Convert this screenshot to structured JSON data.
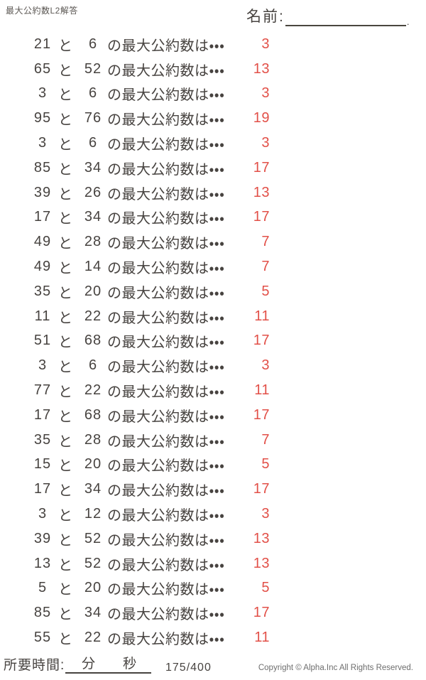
{
  "page": {
    "title_small": "最大公約数L2解答"
  },
  "name_field": {
    "label": "名前:",
    "end_mark": "."
  },
  "problem_format": {
    "connector": "と",
    "suffix": "の最大公約数は・・・"
  },
  "problems": [
    {
      "a": "21",
      "b": "6",
      "gcd": "3"
    },
    {
      "a": "65",
      "b": "52",
      "gcd": "13"
    },
    {
      "a": "3",
      "b": "6",
      "gcd": "3"
    },
    {
      "a": "95",
      "b": "76",
      "gcd": "19"
    },
    {
      "a": "3",
      "b": "6",
      "gcd": "3"
    },
    {
      "a": "85",
      "b": "34",
      "gcd": "17"
    },
    {
      "a": "39",
      "b": "26",
      "gcd": "13"
    },
    {
      "a": "17",
      "b": "34",
      "gcd": "17"
    },
    {
      "a": "49",
      "b": "28",
      "gcd": "7"
    },
    {
      "a": "49",
      "b": "14",
      "gcd": "7"
    },
    {
      "a": "35",
      "b": "20",
      "gcd": "5"
    },
    {
      "a": "11",
      "b": "22",
      "gcd": "11"
    },
    {
      "a": "51",
      "b": "68",
      "gcd": "17"
    },
    {
      "a": "3",
      "b": "6",
      "gcd": "3"
    },
    {
      "a": "77",
      "b": "22",
      "gcd": "11"
    },
    {
      "a": "17",
      "b": "68",
      "gcd": "17"
    },
    {
      "a": "35",
      "b": "28",
      "gcd": "7"
    },
    {
      "a": "15",
      "b": "20",
      "gcd": "5"
    },
    {
      "a": "17",
      "b": "34",
      "gcd": "17"
    },
    {
      "a": "3",
      "b": "12",
      "gcd": "3"
    },
    {
      "a": "39",
      "b": "52",
      "gcd": "13"
    },
    {
      "a": "13",
      "b": "52",
      "gcd": "13"
    },
    {
      "a": "5",
      "b": "20",
      "gcd": "5"
    },
    {
      "a": "85",
      "b": "34",
      "gcd": "17"
    },
    {
      "a": "55",
      "b": "22",
      "gcd": "11"
    }
  ],
  "footer": {
    "time_label": "所要時間:",
    "minutes_label": "分",
    "seconds_label": "秒",
    "progress": "175/400",
    "copyright": "Copyright ©  Alpha.Inc All Rights Reserved."
  },
  "colors": {
    "text": "#474340",
    "answer_red": "#e25048",
    "muted_gray": "#6e6e6e"
  }
}
